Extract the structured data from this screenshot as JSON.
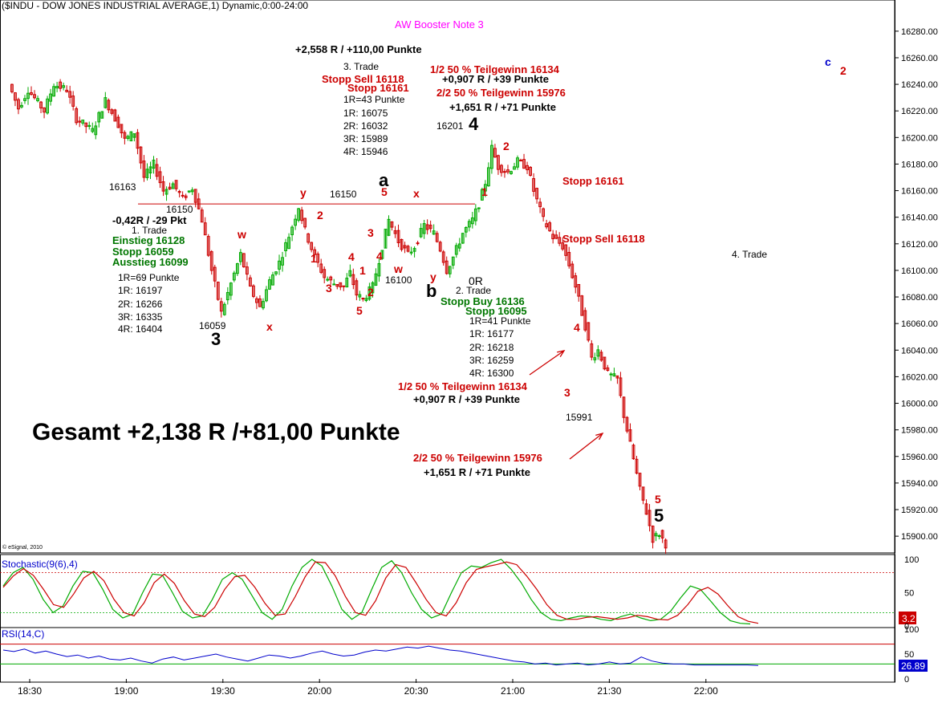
{
  "header": {
    "title": "($INDU - DOW JONES INDUSTRIAL AVERAGE,1) Dynamic,0:00-24:00",
    "subtitle": "AW Booster Note 3",
    "watermark": "© eSignal, 2010"
  },
  "colors": {
    "up": "#00aa00",
    "down": "#cc0000",
    "ref": "#cc0000",
    "rsi": "#0000cc",
    "stoch_k": "#00aa00",
    "stoch_d": "#cc0000"
  },
  "chart_data": [
    {
      "type": "candlestick",
      "title": "($INDU - DOW JONES INDUSTRIAL AVERAGE,1) Dynamic,0:00-24:00",
      "x_ticks": [
        "18:30",
        "19:00",
        "19:30",
        "20:00",
        "20:30",
        "21:00",
        "21:30",
        "22:00"
      ],
      "y_ticks": [
        "16280.00",
        "16260.00",
        "16240.00",
        "16220.00",
        "16200.00",
        "16180.00",
        "16160.00",
        "16140.00",
        "16120.00",
        "16100.00",
        "16080.00",
        "16060.00",
        "16040.00",
        "16020.00",
        "16000.00",
        "15980.00",
        "15960.00",
        "15940.00",
        "15920.00",
        "15900.00"
      ],
      "ylim": [
        15888,
        16295
      ],
      "reference_line": 16150,
      "path": [
        [
          "18:24",
          16240
        ],
        [
          "18:27",
          16222
        ],
        [
          "18:30",
          16236
        ],
        [
          "18:35",
          16220
        ],
        [
          "18:38",
          16240
        ],
        [
          "18:42",
          16236
        ],
        [
          "18:45",
          16214
        ],
        [
          "18:50",
          16205
        ],
        [
          "18:54",
          16228
        ],
        [
          "18:58",
          16210
        ],
        [
          "19:00",
          16198
        ],
        [
          "19:03",
          16204
        ],
        [
          "19:06",
          16170
        ],
        [
          "19:09",
          16180
        ],
        [
          "19:12",
          16160
        ],
        [
          "19:15",
          16165
        ],
        [
          "19:18",
          16154
        ],
        [
          "19:21",
          16162
        ],
        [
          "19:24",
          16138
        ],
        [
          "19:27",
          16100
        ],
        [
          "19:30",
          16068
        ],
        [
          "19:33",
          16090
        ],
        [
          "19:36",
          16112
        ],
        [
          "19:39",
          16086
        ],
        [
          "19:42",
          16072
        ],
        [
          "19:45",
          16092
        ],
        [
          "19:48",
          16106
        ],
        [
          "19:51",
          16126
        ],
        [
          "19:54",
          16148
        ],
        [
          "19:56",
          16130
        ],
        [
          "19:59",
          16110
        ],
        [
          "20:02",
          16095
        ],
        [
          "20:05",
          16090
        ],
        [
          "20:08",
          16088
        ],
        [
          "20:10",
          16098
        ],
        [
          "20:12",
          16082
        ],
        [
          "20:14",
          16078
        ],
        [
          "20:17",
          16088
        ],
        [
          "20:20",
          16118
        ],
        [
          "20:22",
          16138
        ],
        [
          "20:25",
          16122
        ],
        [
          "20:28",
          16112
        ],
        [
          "20:30",
          16118
        ],
        [
          "20:33",
          16134
        ],
        [
          "20:36",
          16128
        ],
        [
          "20:38",
          16116
        ],
        [
          "20:40",
          16100
        ],
        [
          "20:42",
          16110
        ],
        [
          "20:45",
          16128
        ],
        [
          "20:48",
          16138
        ],
        [
          "20:50",
          16150
        ],
        [
          "20:52",
          16166
        ],
        [
          "20:54",
          16192
        ],
        [
          "20:56",
          16178
        ],
        [
          "20:59",
          16174
        ],
        [
          "21:02",
          16182
        ],
        [
          "21:05",
          16178
        ],
        [
          "21:07",
          16160
        ],
        [
          "21:10",
          16138
        ],
        [
          "21:13",
          16125
        ],
        [
          "21:16",
          16118
        ],
        [
          "21:18",
          16104
        ],
        [
          "21:20",
          16088
        ],
        [
          "21:23",
          16058
        ],
        [
          "21:25",
          16034
        ],
        [
          "21:27",
          16040
        ],
        [
          "21:30",
          16022
        ],
        [
          "21:33",
          16018
        ],
        [
          "21:35",
          15991
        ],
        [
          "21:38",
          15958
        ],
        [
          "21:40",
          15935
        ],
        [
          "21:42",
          15918
        ],
        [
          "21:44",
          15898
        ],
        [
          "21:46",
          15902
        ],
        [
          "21:48",
          15894
        ]
      ],
      "annotations": [
        {
          "text": "+2,558 R / +110,00 Punkte",
          "color": "#000000",
          "bold": true
        },
        {
          "text": "3. Trade",
          "color": "#000000"
        },
        {
          "text": "Stopp Sell 16118",
          "color": "#cc0000",
          "bold": true
        },
        {
          "text": "Stopp 16161",
          "color": "#cc0000",
          "bold": true
        },
        {
          "text": "1R=43 Punkte",
          "color": "#000000"
        },
        {
          "text": "1R: 16075",
          "color": "#000000"
        },
        {
          "text": "2R: 16032",
          "color": "#000000"
        },
        {
          "text": "3R: 15989",
          "color": "#000000"
        },
        {
          "text": "4R: 15946",
          "color": "#000000"
        },
        {
          "text": "1/2 50 % Teilgewinn 16134",
          "color": "#cc0000",
          "bold": true
        },
        {
          "text": "+0,907 R / +39 Punkte",
          "color": "#000000",
          "bold": true
        },
        {
          "text": "2/2 50 % Teilgewinn 15976",
          "color": "#cc0000",
          "bold": true
        },
        {
          "text": "+1,651 R / +71 Punkte",
          "color": "#000000",
          "bold": true
        },
        {
          "text": "16201",
          "color": "#000000"
        },
        {
          "text": "4",
          "color": "#000000",
          "bold": true
        },
        {
          "text": "c",
          "color": "#0000cc",
          "bold": true
        },
        {
          "text": "2",
          "color": "#cc0000",
          "bold": true
        },
        {
          "text": "16163",
          "color": "#000000"
        },
        {
          "text": "16150",
          "color": "#000000"
        },
        {
          "text": "-0,42R / -29 Pkt",
          "color": "#000000",
          "bold": true
        },
        {
          "text": "1. Trade",
          "color": "#000000"
        },
        {
          "text": "Einstieg 16128",
          "color": "#007700",
          "bold": true
        },
        {
          "text": "Stopp 16059",
          "color": "#007700",
          "bold": true
        },
        {
          "text": "Ausstieg 16099",
          "color": "#007700",
          "bold": true
        },
        {
          "text": "1R=69 Punkte",
          "color": "#000000"
        },
        {
          "text": "1R: 16197",
          "color": "#000000"
        },
        {
          "text": "2R: 16266",
          "color": "#000000"
        },
        {
          "text": "3R: 16335",
          "color": "#000000"
        },
        {
          "text": "4R: 16404",
          "color": "#000000"
        },
        {
          "text": "16059",
          "color": "#000000"
        },
        {
          "text": "3",
          "color": "#000000",
          "bold": true
        },
        {
          "text": "w",
          "color": "#cc0000",
          "bold": true
        },
        {
          "text": "x",
          "color": "#cc0000",
          "bold": true
        },
        {
          "text": "y",
          "color": "#cc0000",
          "bold": true
        },
        {
          "text": "16150",
          "color": "#000000"
        },
        {
          "text": "a",
          "color": "#000000",
          "bold": true
        },
        {
          "text": "5",
          "color": "#cc0000",
          "bold": true
        },
        {
          "text": "x",
          "color": "#cc0000",
          "bold": true
        },
        {
          "text": "2",
          "color": "#cc0000",
          "bold": true
        },
        {
          "text": "1",
          "color": "#cc0000",
          "bold": true
        },
        {
          "text": "3",
          "color": "#cc0000",
          "bold": true
        },
        {
          "text": "4",
          "color": "#cc0000",
          "bold": true
        },
        {
          "text": "1",
          "color": "#cc0000",
          "bold": true
        },
        {
          "text": "2",
          "color": "#cc0000",
          "bold": true
        },
        {
          "text": "5",
          "color": "#cc0000",
          "bold": true
        },
        {
          "text": "3",
          "color": "#cc0000",
          "bold": true
        },
        {
          "text": "4",
          "color": "#cc0000",
          "bold": true
        },
        {
          "text": "w",
          "color": "#cc0000",
          "bold": true
        },
        {
          "text": "16100",
          "color": "#000000"
        },
        {
          "text": "y",
          "color": "#cc0000",
          "bold": true
        },
        {
          "text": "b",
          "color": "#000000",
          "bold": true
        },
        {
          "text": "0R",
          "color": "#000000"
        },
        {
          "text": "2. Trade",
          "color": "#000000"
        },
        {
          "text": "Stopp Buy 16136",
          "color": "#007700",
          "bold": true
        },
        {
          "text": "Stopp 16095",
          "color": "#007700",
          "bold": true
        },
        {
          "text": "1R=41 Punkte",
          "color": "#000000"
        },
        {
          "text": "1R: 16177",
          "color": "#000000"
        },
        {
          "text": "2R: 16218",
          "color": "#000000"
        },
        {
          "text": "3R: 16259",
          "color": "#000000"
        },
        {
          "text": "4R: 16300",
          "color": "#000000"
        },
        {
          "text": "1",
          "color": "#cc0000",
          "bold": true
        },
        {
          "text": "2",
          "color": "#cc0000",
          "bold": true
        },
        {
          "text": "Stopp 16161",
          "color": "#cc0000",
          "bold": true
        },
        {
          "text": "Stopp Sell 16118",
          "color": "#cc0000",
          "bold": true
        },
        {
          "text": "4. Trade",
          "color": "#000000"
        },
        {
          "text": "1/2 50 % Teilgewinn 16134",
          "color": "#cc0000",
          "bold": true
        },
        {
          "text": "+0,907 R / +39 Punkte",
          "color": "#000000",
          "bold": true
        },
        {
          "text": "4",
          "color": "#cc0000",
          "bold": true
        },
        {
          "text": "3",
          "color": "#cc0000",
          "bold": true
        },
        {
          "text": "15991",
          "color": "#000000"
        },
        {
          "text": "2/2 50 % Teilgewinn 15976",
          "color": "#cc0000",
          "bold": true
        },
        {
          "text": "+1,651 R / +71 Punkte",
          "color": "#000000",
          "bold": true
        },
        {
          "text": "5",
          "color": "#cc0000",
          "bold": true
        },
        {
          "text": "5",
          "color": "#000000",
          "bold": true
        }
      ],
      "summary": "Gesamt +2,138 R /+81,00 Punkte"
    },
    {
      "type": "line",
      "title": "Stochastic(9(6),4)",
      "y_ticks": [
        "100",
        "50",
        "0"
      ],
      "ylim": [
        0,
        100
      ],
      "levels": [
        80,
        20
      ],
      "last_value": "3.2",
      "series": [
        {
          "values": [
            60,
            80,
            88,
            70,
            40,
            20,
            30,
            60,
            82,
            80,
            55,
            25,
            12,
            18,
            50,
            78,
            76,
            50,
            22,
            12,
            15,
            40,
            70,
            80,
            70,
            45,
            20,
            10,
            25,
            60,
            88,
            100,
            90,
            60,
            25,
            10,
            20,
            55,
            88,
            98,
            80,
            50,
            25,
            12,
            18,
            50,
            80,
            90,
            88,
            95,
            100,
            85,
            65,
            40,
            20,
            10,
            8,
            12,
            15,
            14,
            10,
            8,
            14,
            18,
            12,
            8,
            10,
            22,
            42,
            60,
            55,
            38,
            20,
            8,
            4,
            3
          ]
        },
        {
          "values": [
            58,
            75,
            86,
            76,
            55,
            32,
            28,
            48,
            72,
            82,
            68,
            40,
            20,
            15,
            35,
            65,
            78,
            64,
            38,
            18,
            14,
            28,
            55,
            74,
            76,
            58,
            34,
            16,
            18,
            44,
            74,
            96,
            95,
            75,
            44,
            20,
            16,
            38,
            72,
            92,
            88,
            65,
            40,
            20,
            15,
            35,
            65,
            85,
            89,
            92,
            96,
            92,
            75,
            55,
            32,
            16,
            10,
            10,
            13,
            14,
            12,
            10,
            12,
            16,
            14,
            10,
            9,
            16,
            32,
            52,
            58,
            48,
            30,
            14,
            7,
            4
          ]
        }
      ]
    },
    {
      "type": "line",
      "title": "RSI(14,C)",
      "y_ticks": [
        "100",
        "50",
        "0"
      ],
      "ylim": [
        0,
        100
      ],
      "levels": [
        70,
        30
      ],
      "last_value": "26.89",
      "series": [
        {
          "values": [
            58,
            55,
            60,
            52,
            56,
            50,
            45,
            48,
            42,
            46,
            40,
            38,
            42,
            36,
            32,
            40,
            44,
            38,
            42,
            46,
            50,
            44,
            40,
            36,
            42,
            48,
            46,
            42,
            46,
            52,
            56,
            50,
            46,
            48,
            54,
            58,
            56,
            60,
            64,
            62,
            66,
            62,
            58,
            56,
            52,
            48,
            44,
            40,
            36,
            34,
            30,
            32,
            28,
            30,
            32,
            28,
            30,
            34,
            30,
            32,
            44,
            36,
            32,
            30,
            30,
            28,
            28,
            28,
            28,
            28,
            28,
            27
          ]
        }
      ]
    }
  ]
}
